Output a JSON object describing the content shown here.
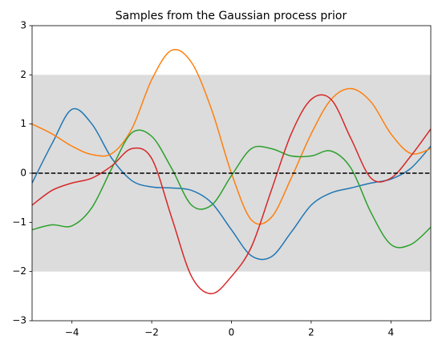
{
  "chart_data": {
    "type": "line",
    "title": "Samples from the Gaussian process prior",
    "x": [
      -5,
      -4.5,
      -4,
      -3.5,
      -3,
      -2.5,
      -2,
      -1.5,
      -1,
      -0.5,
      0,
      0.5,
      1,
      1.5,
      2,
      2.5,
      3,
      3.5,
      4,
      4.5,
      5
    ],
    "series": [
      {
        "color": "#1f77b4",
        "values": [
          -0.2,
          0.6,
          1.3,
          1.0,
          0.3,
          -0.15,
          -0.28,
          -0.3,
          -0.35,
          -0.6,
          -1.15,
          -1.68,
          -1.7,
          -1.2,
          -0.65,
          -0.4,
          -0.3,
          -0.2,
          -0.12,
          0.1,
          0.55
        ]
      },
      {
        "color": "#ff7f0e",
        "values": [
          1.0,
          0.8,
          0.55,
          0.38,
          0.4,
          0.9,
          1.9,
          2.5,
          2.25,
          1.3,
          0.0,
          -0.95,
          -0.9,
          -0.1,
          0.8,
          1.5,
          1.72,
          1.45,
          0.8,
          0.4,
          0.5
        ]
      },
      {
        "color": "#2ca02c",
        "values": [
          -1.15,
          -1.05,
          -1.07,
          -0.7,
          0.1,
          0.82,
          0.75,
          0.1,
          -0.65,
          -0.65,
          -0.05,
          0.5,
          0.5,
          0.35,
          0.35,
          0.45,
          0.1,
          -0.8,
          -1.45,
          -1.45,
          -1.1
        ]
      },
      {
        "color": "#d62728",
        "values": [
          -0.65,
          -0.35,
          -0.2,
          -0.1,
          0.15,
          0.5,
          0.3,
          -0.9,
          -2.1,
          -2.45,
          -2.1,
          -1.5,
          -0.35,
          0.8,
          1.5,
          1.5,
          0.7,
          -0.1,
          -0.1,
          0.35,
          0.9
        ]
      }
    ],
    "band": [
      -2,
      2
    ],
    "band_color": "#dcdcdc",
    "mean": 0,
    "xlim": [
      -5,
      5
    ],
    "ylim": [
      -3,
      3
    ],
    "xticks": [
      {
        "value": -4,
        "label": "−4"
      },
      {
        "value": -2,
        "label": "−2"
      },
      0,
      2,
      4
    ],
    "yticks": [
      {
        "value": -3,
        "label": "−3"
      },
      {
        "value": -2,
        "label": "−2"
      },
      {
        "value": -1,
        "label": "−1"
      },
      0,
      1,
      2,
      3
    ]
  }
}
